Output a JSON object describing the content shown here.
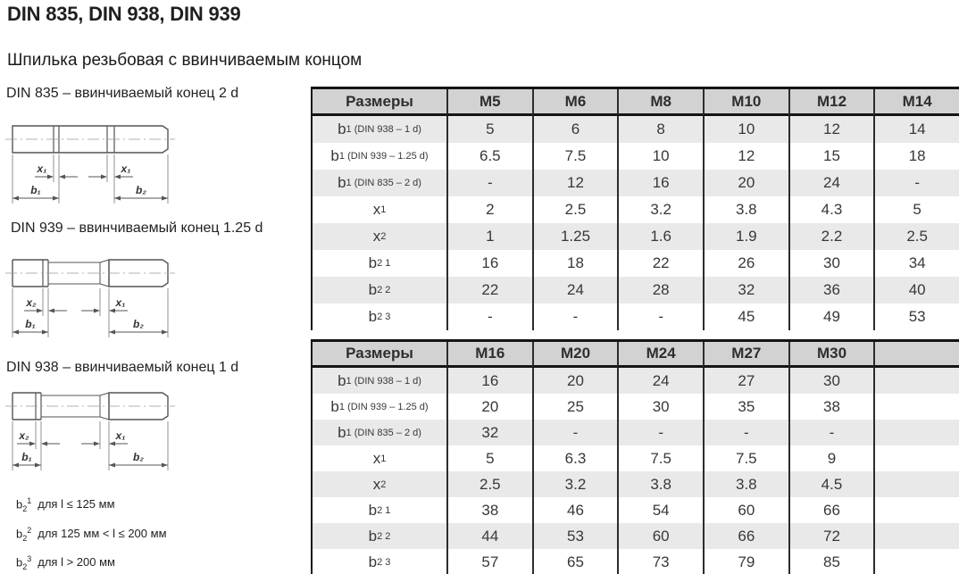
{
  "page": {
    "title": "DIN 835, DIN 938, DIN 939",
    "subtitle": "Шпилька резьбовая с ввинчиваемым концом"
  },
  "drawings": [
    {
      "caption": "DIN 835 – ввинчиваемый конец 2 d",
      "x_left": "x₁",
      "x_right": "x₁",
      "b_left": "b₁",
      "b_right": "b₂"
    },
    {
      "caption": "DIN 939 – ввинчиваемый конец 1.25 d",
      "x_left": "x₂",
      "x_right": "x₁",
      "b_left": "b₁",
      "b_right": "b₂"
    },
    {
      "caption": "DIN 938 – ввинчиваемый конец 1 d",
      "x_left": "x₂",
      "x_right": "x₁",
      "b_left": "b₁",
      "b_right": "b₂"
    }
  ],
  "tables": [
    {
      "columns": [
        "Размеры",
        "M5",
        "M6",
        "M8",
        "M10",
        "M12",
        "M14"
      ],
      "rows": [
        {
          "base": "b",
          "sub": "1",
          "sup": "",
          "note": "(DIN 938 – 1 d)",
          "values": [
            "5",
            "6",
            "8",
            "10",
            "12",
            "14"
          ]
        },
        {
          "base": "b",
          "sub": "1",
          "sup": "",
          "note": "(DIN 939 – 1.25 d)",
          "values": [
            "6.5",
            "7.5",
            "10",
            "12",
            "15",
            "18"
          ]
        },
        {
          "base": "b",
          "sub": "1",
          "sup": "",
          "note": "(DIN 835 – 2 d)",
          "values": [
            "-",
            "12",
            "16",
            "20",
            "24",
            "-"
          ]
        },
        {
          "base": "x",
          "sub": "1",
          "sup": "",
          "note": "",
          "values": [
            "2",
            "2.5",
            "3.2",
            "3.8",
            "4.3",
            "5"
          ]
        },
        {
          "base": "x",
          "sub": "2",
          "sup": "",
          "note": "",
          "values": [
            "1",
            "1.25",
            "1.6",
            "1.9",
            "2.2",
            "2.5"
          ]
        },
        {
          "base": "b",
          "sub": "2",
          "sup": "1",
          "note": "",
          "values": [
            "16",
            "18",
            "22",
            "26",
            "30",
            "34"
          ]
        },
        {
          "base": "b",
          "sub": "2",
          "sup": "2",
          "note": "",
          "values": [
            "22",
            "24",
            "28",
            "32",
            "36",
            "40"
          ]
        },
        {
          "base": "b",
          "sub": "2",
          "sup": "3",
          "note": "",
          "values": [
            "-",
            "-",
            "-",
            "45",
            "49",
            "53"
          ]
        }
      ]
    },
    {
      "columns": [
        "Размеры",
        "M16",
        "M20",
        "M24",
        "M27",
        "M30",
        ""
      ],
      "rows": [
        {
          "base": "b",
          "sub": "1",
          "sup": "",
          "note": "(DIN 938 – 1 d)",
          "values": [
            "16",
            "20",
            "24",
            "27",
            "30",
            ""
          ]
        },
        {
          "base": "b",
          "sub": "1",
          "sup": "",
          "note": "(DIN 939 – 1.25 d)",
          "values": [
            "20",
            "25",
            "30",
            "35",
            "38",
            ""
          ]
        },
        {
          "base": "b",
          "sub": "1",
          "sup": "",
          "note": "(DIN 835 – 2 d)",
          "values": [
            "32",
            "-",
            "-",
            "-",
            "-",
            ""
          ]
        },
        {
          "base": "x",
          "sub": "1",
          "sup": "",
          "note": "",
          "values": [
            "5",
            "6.3",
            "7.5",
            "7.5",
            "9",
            ""
          ]
        },
        {
          "base": "x",
          "sub": "2",
          "sup": "",
          "note": "",
          "values": [
            "2.5",
            "3.2",
            "3.8",
            "3.8",
            "4.5",
            ""
          ]
        },
        {
          "base": "b",
          "sub": "2",
          "sup": "1",
          "note": "",
          "values": [
            "38",
            "46",
            "54",
            "60",
            "66",
            ""
          ]
        },
        {
          "base": "b",
          "sub": "2",
          "sup": "2",
          "note": "",
          "values": [
            "44",
            "53",
            "60",
            "66",
            "72",
            ""
          ]
        },
        {
          "base": "b",
          "sub": "2",
          "sup": "3",
          "note": "",
          "values": [
            "57",
            "65",
            "73",
            "79",
            "85",
            ""
          ]
        }
      ]
    }
  ],
  "footnotes": [
    {
      "base": "b",
      "sub": "2",
      "sup": "1",
      "text": "для l ≤ 125 мм"
    },
    {
      "base": "b",
      "sub": "2",
      "sup": "2",
      "text": "для 125 мм < l ≤ 200 мм"
    },
    {
      "base": "b",
      "sub": "2",
      "sup": "3",
      "text": "для l > 200 мм"
    }
  ],
  "colors": {
    "header_bg": "#d2d2d2",
    "stripe_bg": "#e9e9e9",
    "table_border": "#141414",
    "drawing_line": "#555555",
    "text": "#333333"
  }
}
